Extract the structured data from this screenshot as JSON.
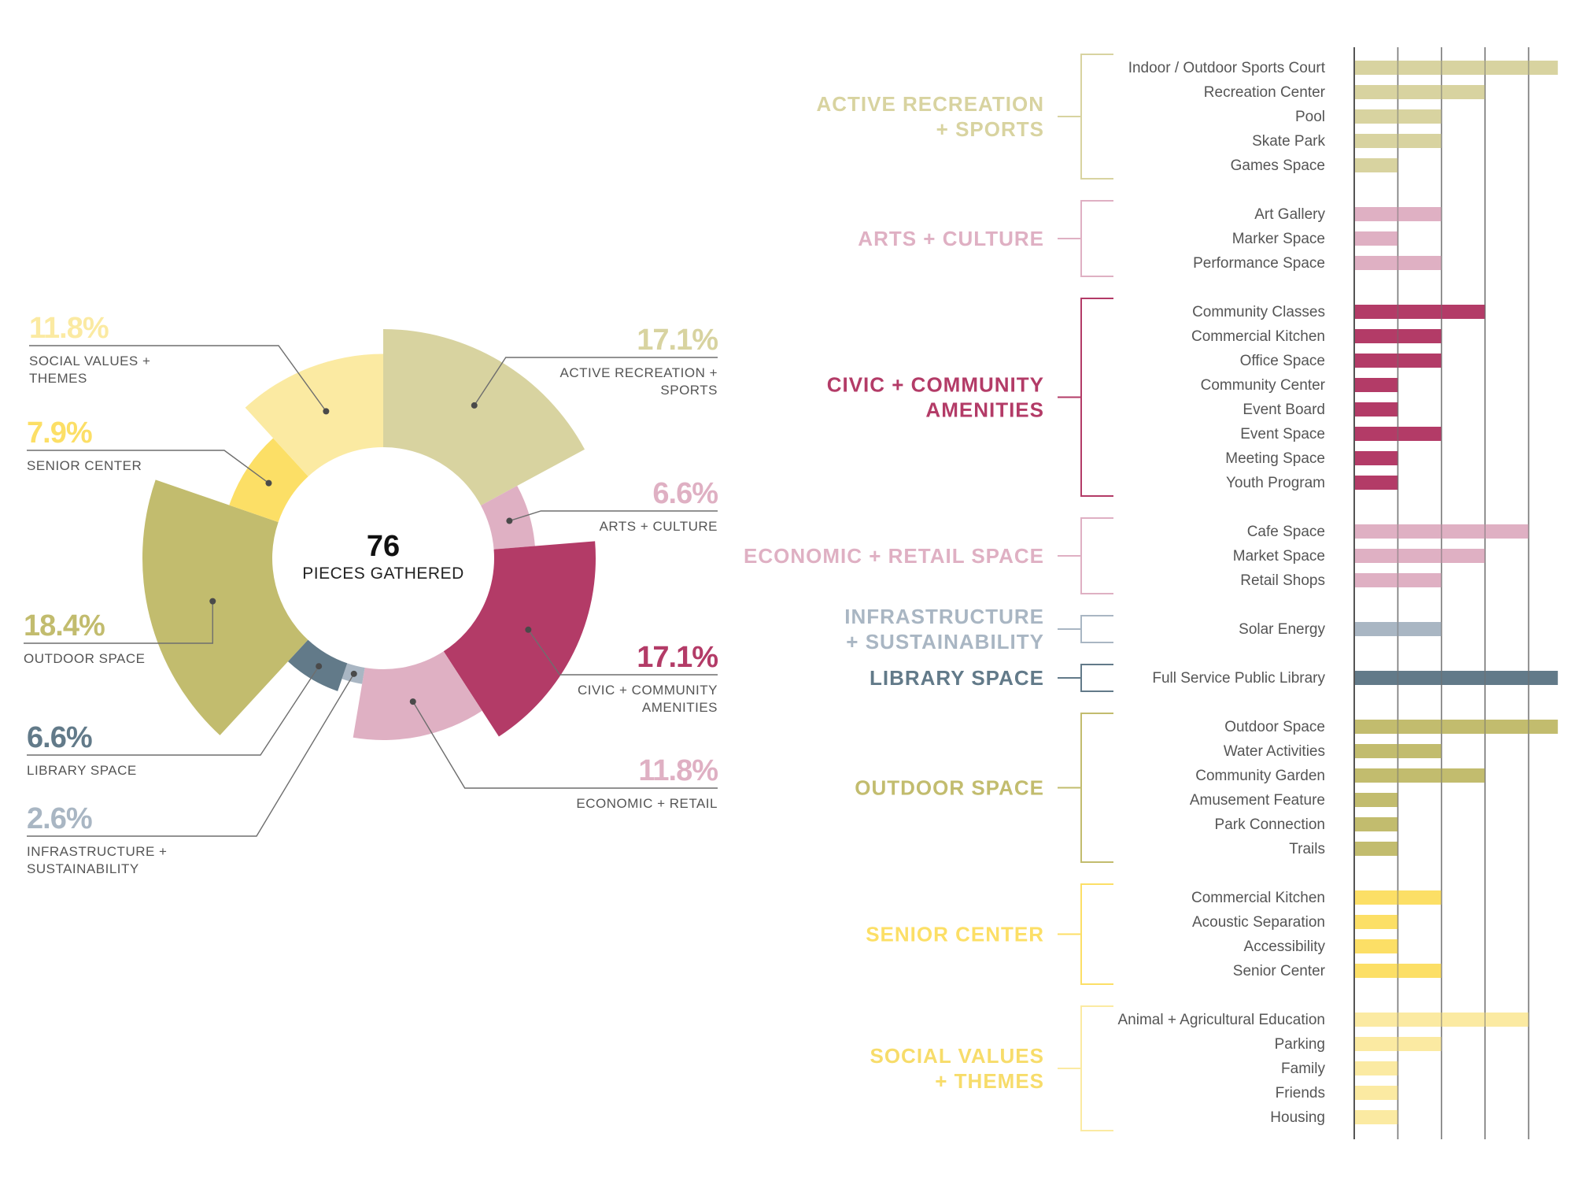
{
  "chart_data": [
    {
      "type": "pie",
      "variant": "polar-area-donut",
      "center_value": "76",
      "center_label": "PIECES GATHERED",
      "slices": [
        {
          "key": "active",
          "label_lines": [
            "ACTIVE RECREATION +",
            "SPORTS"
          ],
          "value": 17.1,
          "value_label": "17.1%",
          "color": "#d8d3a0",
          "radius_rel": 1.0,
          "side": "right"
        },
        {
          "key": "arts",
          "label_lines": [
            "ARTS + CULTURE"
          ],
          "value": 6.6,
          "value_label": "6.6%",
          "color": "#dfb0c3",
          "radius_rel": 0.35,
          "side": "right"
        },
        {
          "key": "civic",
          "label_lines": [
            "CIVIC + COMMUNITY",
            "AMENITIES"
          ],
          "value": 17.1,
          "value_label": "17.1%",
          "color": "#b33b67",
          "radius_rel": 0.86,
          "side": "right"
        },
        {
          "key": "economic",
          "label_lines": [
            "ECONOMIC + RETAIL"
          ],
          "value": 11.8,
          "value_label": "11.8%",
          "color": "#dfb0c3",
          "radius_rel": 0.6,
          "side": "right"
        },
        {
          "key": "infra",
          "label_lines": [
            "INFRASTRUCTURE +",
            "SUSTAINABILITY"
          ],
          "value": 2.6,
          "value_label": "2.6%",
          "color": "#a9b6c3",
          "radius_rel": 0.14,
          "side": "left"
        },
        {
          "key": "library",
          "label_lines": [
            "LIBRARY SPACE"
          ],
          "value": 6.6,
          "value_label": "6.6%",
          "color": "#627a89",
          "radius_rel": 0.25,
          "side": "left"
        },
        {
          "key": "outdoor",
          "label_lines": [
            "OUTDOOR SPACE"
          ],
          "value": 18.4,
          "value_label": "18.4%",
          "color": "#c2bc6e",
          "radius_rel": 1.1,
          "side": "left"
        },
        {
          "key": "senior",
          "label_lines": [
            "SENIOR CENTER"
          ],
          "value": 7.9,
          "value_label": "7.9%",
          "color": "#fcdf66",
          "radius_rel": 0.44,
          "side": "left"
        },
        {
          "key": "social",
          "label_lines": [
            "SOCIAL VALUES +",
            "THEMES"
          ],
          "value": 11.8,
          "value_label": "11.8%",
          "color": "#fbeaa2",
          "radius_rel": 0.79,
          "side": "left"
        }
      ]
    },
    {
      "type": "bar",
      "orientation": "horizontal",
      "grid": true,
      "xlim": [
        0,
        5
      ],
      "gridlines": [
        0,
        1,
        2,
        3,
        4,
        5
      ],
      "groups": [
        {
          "key": "active",
          "title_lines": [
            "ACTIVE RECREATION",
            "+ SPORTS"
          ],
          "color": "#d8d3a0",
          "text_color": "#d8d3a0",
          "items": [
            {
              "label": "Indoor / Outdoor Sports Court",
              "value": 4.67
            },
            {
              "label": "Recreation Center",
              "value": 3
            },
            {
              "label": "Pool",
              "value": 2
            },
            {
              "label": "Skate Park",
              "value": 2
            },
            {
              "label": "Games Space",
              "value": 1
            }
          ]
        },
        {
          "key": "arts",
          "title_lines": [
            "ARTS + CULTURE"
          ],
          "color": "#dfb0c3",
          "text_color": "#dfb0c3",
          "items": [
            {
              "label": "Art Gallery",
              "value": 2
            },
            {
              "label": "Marker Space",
              "value": 1
            },
            {
              "label": "Performance Space",
              "value": 2
            }
          ]
        },
        {
          "key": "civic",
          "title_lines": [
            "CIVIC + COMMUNITY",
            "AMENITIES"
          ],
          "color": "#b33b67",
          "text_color": "#b33b67",
          "items": [
            {
              "label": "Community Classes",
              "value": 3
            },
            {
              "label": "Commercial Kitchen",
              "value": 2
            },
            {
              "label": "Office Space",
              "value": 2
            },
            {
              "label": "Community Center",
              "value": 1
            },
            {
              "label": "Event Board",
              "value": 1
            },
            {
              "label": "Event Space",
              "value": 2
            },
            {
              "label": "Meeting Space",
              "value": 1
            },
            {
              "label": "Youth Program",
              "value": 1
            }
          ]
        },
        {
          "key": "economic",
          "title_lines": [
            "ECONOMIC + RETAIL SPACE"
          ],
          "color": "#dfb0c3",
          "text_color": "#dfb0c3",
          "items": [
            {
              "label": "Cafe Space",
              "value": 4
            },
            {
              "label": "Market Space",
              "value": 3
            },
            {
              "label": "Retail Shops",
              "value": 2
            }
          ]
        },
        {
          "key": "infra",
          "title_lines": [
            "INFRASTRUCTURE",
            "+ SUSTAINABILITY"
          ],
          "color": "#a9b6c3",
          "text_color": "#a9b6c3",
          "items": [
            {
              "label": "Solar Energy",
              "value": 2
            }
          ]
        },
        {
          "key": "library",
          "title_lines": [
            "LIBRARY SPACE"
          ],
          "color": "#627a89",
          "text_color": "#627a89",
          "items": [
            {
              "label": "Full Service Public Library",
              "value": 4.67
            }
          ]
        },
        {
          "key": "outdoor",
          "title_lines": [
            "OUTDOOR SPACE"
          ],
          "color": "#c2bc6e",
          "text_color": "#c2bc6e",
          "items": [
            {
              "label": "Outdoor Space",
              "value": 4.67
            },
            {
              "label": "Water Activities",
              "value": 2
            },
            {
              "label": "Community Garden",
              "value": 3
            },
            {
              "label": "Amusement Feature",
              "value": 1
            },
            {
              "label": "Park Connection",
              "value": 1
            },
            {
              "label": "Trails",
              "value": 1
            }
          ]
        },
        {
          "key": "senior",
          "title_lines": [
            "SENIOR CENTER"
          ],
          "color": "#fcdf66",
          "text_color": "#fcdf66",
          "items": [
            {
              "label": "Commercial Kitchen",
              "value": 2
            },
            {
              "label": "Acoustic Separation",
              "value": 1
            },
            {
              "label": "Accessibility",
              "value": 1
            },
            {
              "label": "Senior Center",
              "value": 2
            }
          ]
        },
        {
          "key": "social",
          "title_lines": [
            "SOCIAL VALUES",
            "+ THEMES"
          ],
          "color": "#fbeaa2",
          "text_color": "#f7dc6a",
          "items": [
            {
              "label": "Animal + Agricultural Education",
              "value": 4
            },
            {
              "label": "Parking",
              "value": 2
            },
            {
              "label": "Family",
              "value": 1
            },
            {
              "label": "Friends",
              "value": 1
            },
            {
              "label": "Housing",
              "value": 1
            }
          ]
        }
      ]
    }
  ]
}
